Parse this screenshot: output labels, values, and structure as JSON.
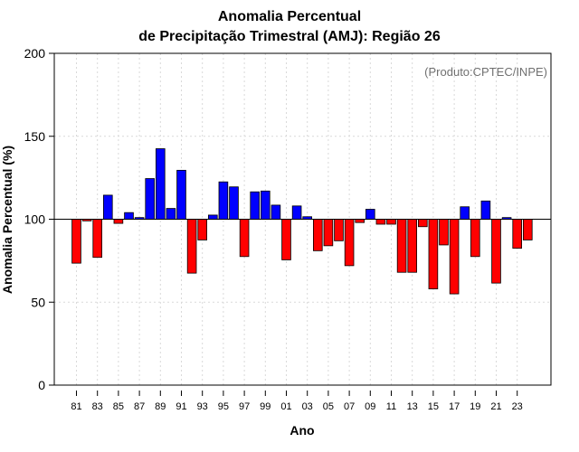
{
  "chart_data": {
    "type": "bar",
    "title": "Anomalia Percentual",
    "subtitle": "de Precipitação Trimestral (AMJ): Região 26",
    "xlabel": "Ano",
    "ylabel": "Anomalia Percentual (%)",
    "credit": "(Produto:CPTEC/INPE)",
    "ylim": [
      0,
      200
    ],
    "yticks": [
      "0",
      "50",
      "100",
      "150",
      "200"
    ],
    "baseline": 100,
    "grid": true,
    "legend": "none",
    "colors": {
      "above": "#0000ff",
      "below": "#ff0000",
      "edge": "#000000",
      "grid": "#d9d9d9"
    },
    "categories": [
      "1981",
      "1982",
      "1983",
      "1984",
      "1985",
      "1986",
      "1987",
      "1988",
      "1989",
      "1990",
      "1991",
      "1992",
      "1993",
      "1994",
      "1995",
      "1996",
      "1997",
      "1998",
      "1999",
      "2000",
      "2001",
      "2002",
      "2003",
      "2004",
      "2005",
      "2006",
      "2007",
      "2008",
      "2009",
      "2010",
      "2011",
      "2012",
      "2013",
      "2014",
      "2015",
      "2016",
      "2017",
      "2018",
      "2019",
      "2020",
      "2021",
      "2022",
      "2023",
      "2024"
    ],
    "tick_labels": [
      "81",
      "83",
      "85",
      "87",
      "89",
      "91",
      "93",
      "95",
      "97",
      "99",
      "01",
      "03",
      "05",
      "07",
      "09",
      "11",
      "13",
      "15",
      "17",
      "19",
      "21",
      "23"
    ],
    "values": [
      73.5,
      99,
      77,
      114.5,
      97.5,
      104,
      101,
      124.5,
      142.5,
      106.5,
      129.5,
      67.5,
      87.5,
      102.5,
      122.5,
      119.5,
      77.5,
      116.5,
      117,
      108.5,
      75.5,
      108,
      101.5,
      81,
      84,
      87,
      72,
      98,
      106,
      97,
      97,
      68,
      68,
      95.5,
      58,
      84.5,
      55,
      107.5,
      77.5,
      111,
      61.5,
      101,
      82.5,
      87.5
    ]
  }
}
